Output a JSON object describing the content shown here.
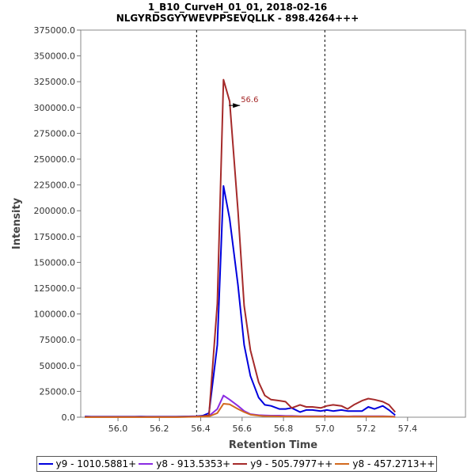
{
  "chart_data": {
    "type": "line",
    "title_line1": "1_B10_CurveH_01_01, 2018-02-16",
    "title_line2": "NLGYRDSGYYWEVPPSEVQLLK - 898.4264+++",
    "xlabel": "Retention Time",
    "ylabel": "Intensity",
    "xlim": [
      55.82,
      57.68
    ],
    "ylim": [
      0,
      375000
    ],
    "x_ticks": [
      56.0,
      56.2,
      56.4,
      56.6,
      56.8,
      57.0,
      57.2,
      57.4
    ],
    "x_tick_labels": [
      "56.0",
      "56.2",
      "56.4",
      "56.6",
      "56.8",
      "57.0",
      "57.2",
      "57.4"
    ],
    "y_ticks": [
      0,
      25000,
      50000,
      75000,
      100000,
      125000,
      150000,
      175000,
      200000,
      225000,
      250000,
      275000,
      300000,
      325000,
      350000,
      375000
    ],
    "y_tick_labels": [
      "0.0",
      "25000.0",
      "50000.0",
      "75000.0",
      "100000.0",
      "125000.0",
      "150000.0",
      "175000.0",
      "200000.0",
      "225000.0",
      "250000.0",
      "275000.0",
      "300000.0",
      "325000.0",
      "350000.0",
      "375000.0"
    ],
    "integration_boundaries": [
      56.38,
      57.0
    ],
    "peak_annotation": {
      "label": "56.6",
      "x": 56.59,
      "y": 302000,
      "color": "#a52a2a"
    },
    "x": [
      55.84,
      55.87,
      55.91,
      55.94,
      55.98,
      56.01,
      56.04,
      56.08,
      56.11,
      56.14,
      56.18,
      56.21,
      56.24,
      56.28,
      56.31,
      56.34,
      56.38,
      56.41,
      56.44,
      56.48,
      56.51,
      56.54,
      56.58,
      56.61,
      56.64,
      56.68,
      56.71,
      56.74,
      56.78,
      56.81,
      56.84,
      56.88,
      56.91,
      56.94,
      56.98,
      57.01,
      57.04,
      57.08,
      57.11,
      57.14,
      57.18,
      57.21,
      57.24,
      57.28,
      57.31,
      57.34,
      57.38,
      57.41,
      57.44,
      57.48,
      57.51,
      57.54,
      57.58,
      57.61,
      57.64
    ],
    "series": [
      {
        "name": "y9 - 1010.5881+",
        "color": "#0000dd",
        "values": [
          800,
          600,
          500,
          500,
          600,
          500,
          600,
          500,
          700,
          600,
          500,
          600,
          500,
          600,
          700,
          800,
          1000,
          1500,
          4000,
          70000,
          224000,
          192000,
          128000,
          70000,
          40000,
          19000,
          12000,
          11000,
          8000,
          8000,
          9000,
          5000,
          7000,
          7000,
          6000,
          7000,
          6000,
          7000,
          6000,
          6000,
          6000,
          10000,
          8000,
          11000,
          7000,
          2000,
          null,
          null,
          null,
          null,
          null,
          null,
          null,
          null,
          null
        ]
      },
      {
        "name": "y8 - 913.5353+",
        "color": "#8a2be2",
        "values": [
          300,
          300,
          300,
          300,
          300,
          300,
          300,
          300,
          300,
          300,
          300,
          300,
          300,
          300,
          400,
          600,
          800,
          1000,
          1200,
          8000,
          21000,
          17000,
          11000,
          6000,
          3000,
          2000,
          1800,
          1500,
          1500,
          1200,
          1200,
          1000,
          1000,
          1000,
          1000,
          900,
          900,
          900,
          800,
          900,
          900,
          900,
          900,
          900,
          800,
          500,
          null,
          null,
          null,
          null,
          null,
          null,
          null,
          null,
          null
        ]
      },
      {
        "name": "y9 - 505.7977++",
        "color": "#a52a2a",
        "values": [
          200,
          200,
          200,
          200,
          200,
          200,
          200,
          200,
          200,
          200,
          200,
          200,
          200,
          200,
          300,
          400,
          600,
          1000,
          2000,
          110000,
          327000,
          306000,
          200000,
          108000,
          65000,
          34000,
          21000,
          17000,
          16000,
          15000,
          9000,
          12000,
          10000,
          10000,
          9000,
          11000,
          12000,
          11000,
          8000,
          12000,
          16000,
          18000,
          17000,
          15000,
          12000,
          5000,
          null,
          null,
          null,
          null,
          null,
          null,
          null,
          null,
          null
        ]
      },
      {
        "name": "y8 - 457.2713++",
        "color": "#d2691e",
        "values": [
          100,
          100,
          100,
          100,
          100,
          100,
          100,
          100,
          100,
          100,
          100,
          100,
          100,
          100,
          200,
          300,
          400,
          600,
          800,
          4000,
          13000,
          12500,
          8000,
          5000,
          2500,
          1500,
          1000,
          900,
          800,
          700,
          700,
          600,
          600,
          600,
          600,
          600,
          500,
          500,
          500,
          500,
          500,
          500,
          500,
          500,
          500,
          300,
          null,
          null,
          null,
          null,
          null,
          null,
          null,
          null,
          null
        ]
      }
    ]
  }
}
